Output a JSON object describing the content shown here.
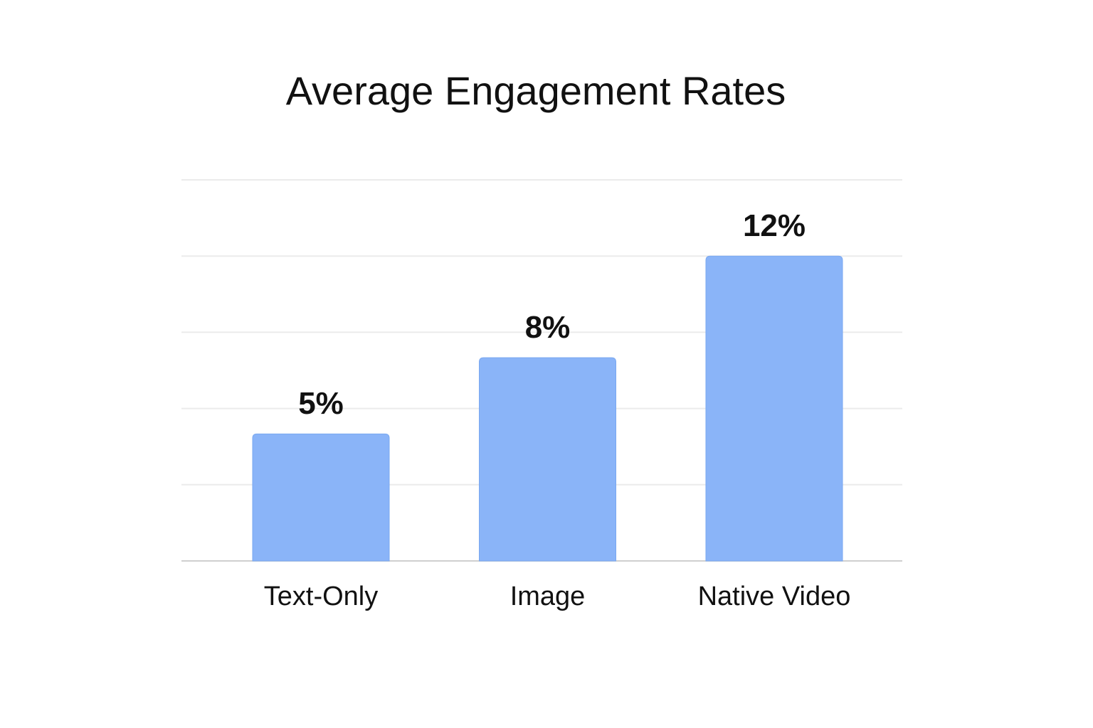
{
  "chart_data": {
    "type": "bar",
    "title": "Average Engagement Rates",
    "categories": [
      "Text-Only",
      "Image",
      "Native Video"
    ],
    "values": [
      5,
      8,
      12
    ],
    "value_labels": [
      "5%",
      "8%",
      "12%"
    ],
    "color": "#8ab4f8",
    "ylim": [
      0,
      15
    ],
    "yticks": [
      0,
      3,
      6,
      9,
      12,
      15
    ],
    "grid": true
  }
}
